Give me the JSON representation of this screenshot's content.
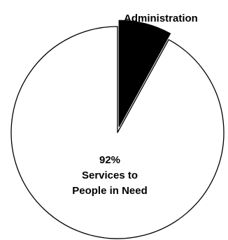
{
  "chart_data": {
    "type": "pie",
    "title": "",
    "slices": [
      {
        "label": "Administration",
        "value": 8,
        "pct_label": "8%",
        "color": "#000000",
        "exploded": true
      },
      {
        "label": "Services to People in Need",
        "value": 92,
        "pct_label": "92%",
        "color": "#ffffff",
        "exploded": false
      }
    ],
    "label_placement": {
      "Administration": "outside-top-right",
      "Services to People in Need": "inside"
    }
  },
  "colors": {
    "outline": "#000000",
    "background": "#ffffff"
  }
}
